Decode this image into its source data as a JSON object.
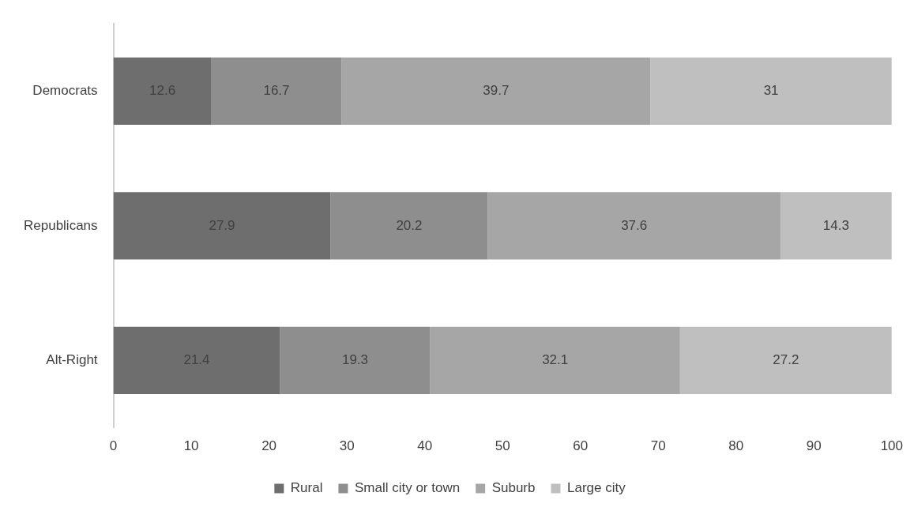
{
  "chart_data": {
    "type": "bar",
    "orientation": "horizontal",
    "stacked": true,
    "categories": [
      "Democrats",
      "Republicans",
      "Alt-Right"
    ],
    "series": [
      {
        "name": "Rural",
        "color": "#6e6e6e",
        "values": [
          12.6,
          27.9,
          21.4
        ]
      },
      {
        "name": "Small city or town",
        "color": "#8e8e8e",
        "values": [
          16.7,
          20.2,
          19.3
        ]
      },
      {
        "name": "Suburb",
        "color": "#a6a6a6",
        "values": [
          39.7,
          37.6,
          32.1
        ]
      },
      {
        "name": "Large city",
        "color": "#bfbfbf",
        "values": [
          31,
          14.3,
          27.2
        ]
      }
    ],
    "xlim": [
      0,
      100
    ],
    "xticks": [
      0,
      10,
      20,
      30,
      40,
      50,
      60,
      70,
      80,
      90,
      100
    ],
    "grid": false,
    "legend": "bottom",
    "data_labels": true
  }
}
